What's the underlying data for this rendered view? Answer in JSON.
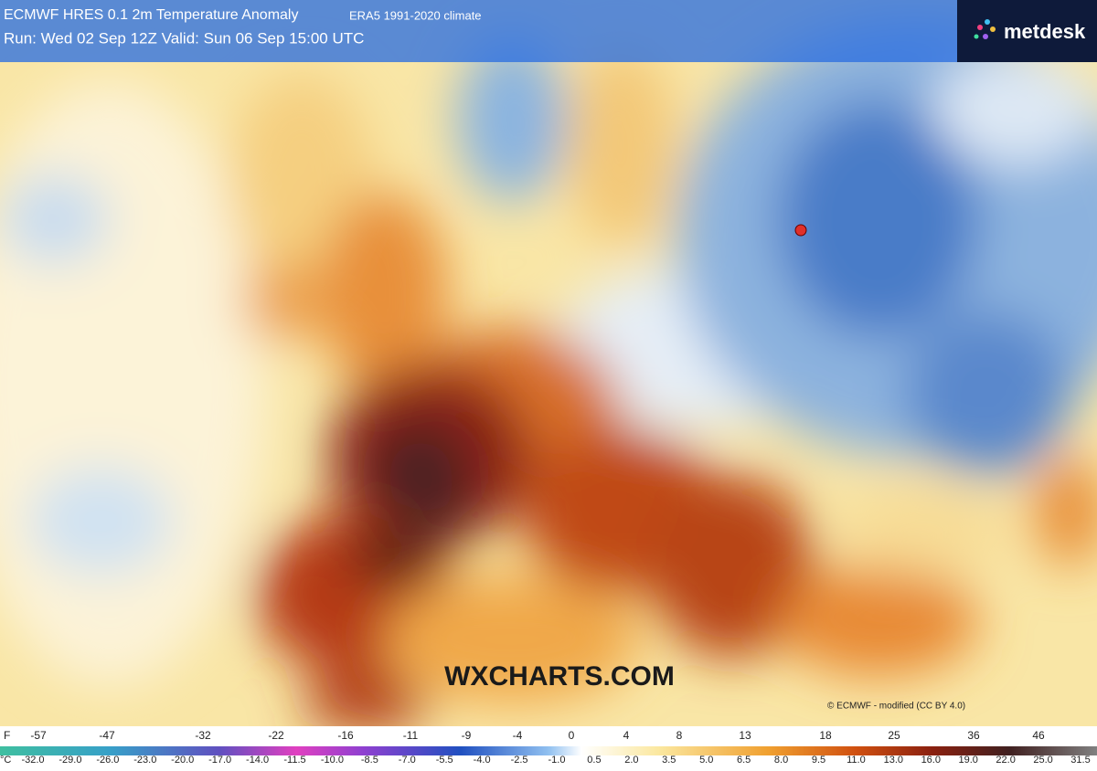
{
  "header": {
    "title": "ECMWF HRES 0.1 2m Temperature Anomaly",
    "climate": "ERA5 1991-2020 climate",
    "run": "Run: Wed 02 Sep 12Z Valid: Sun 06 Sep 15:00 UTC"
  },
  "logo": "metdesk",
  "watermark": "WXCHARTS.COM",
  "credit": "© ECMWF - modified (CC BY 4.0)",
  "legend": {
    "f_unit": "F",
    "f_labels": [
      -57,
      -47,
      -32,
      -22,
      -16,
      -11,
      -9,
      -4,
      0,
      4,
      8,
      13,
      18,
      25,
      36,
      46
    ],
    "c_unit": "°C",
    "c_labels": [
      "-32.0",
      "-29.0",
      "-26.0",
      "-23.0",
      "-20.0",
      "-17.0",
      "-14.0",
      "-11.5",
      "-10.0",
      "-8.5",
      "-7.0",
      "-5.5",
      "-4.0",
      "-2.5",
      "-1.0",
      "0.5",
      "2.0",
      "3.5",
      "5.0",
      "6.5",
      "8.0",
      "9.5",
      "11.0",
      "13.0",
      "16.0",
      "19.0",
      "22.0",
      "25.0",
      "31.5"
    ]
  }
}
